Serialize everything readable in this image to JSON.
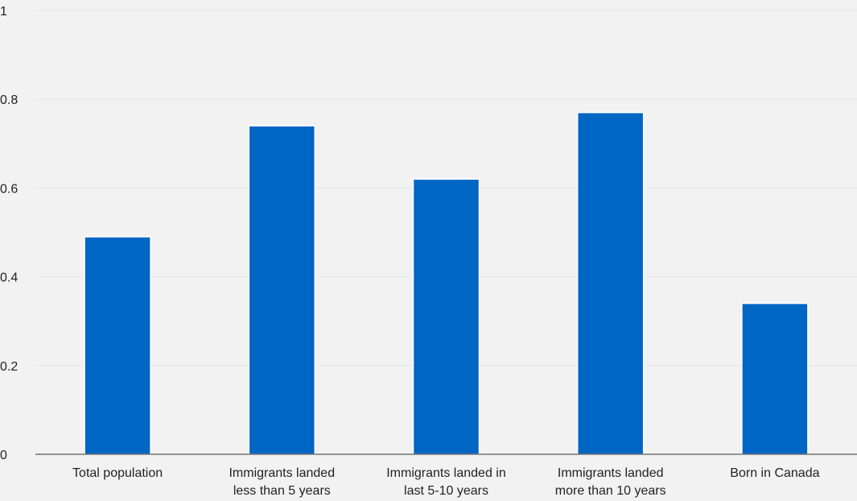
{
  "chart_data": {
    "type": "bar",
    "title": "",
    "xlabel": "",
    "ylabel": "",
    "ylim": [
      0,
      1
    ],
    "yticks": [
      0,
      0.2,
      0.4,
      0.6,
      0.8,
      1
    ],
    "ytick_labels": [
      "0",
      "0.2",
      "0.4",
      "0.6",
      "0.8",
      "1"
    ],
    "grid": true,
    "categories": [
      [
        "Total population"
      ],
      [
        "Immigrants landed",
        "less than 5 years"
      ],
      [
        "Immigrants landed in",
        "last 5-10 years"
      ],
      [
        "Immigrants landed",
        "more than 10 years"
      ],
      [
        "Born in Canada"
      ]
    ],
    "values": [
      0.49,
      0.74,
      0.62,
      0.77,
      0.34
    ],
    "colors": {
      "bar": "#0066c4",
      "grid": "#e4e4e4",
      "axis": "#333333",
      "background": "#f2f2f2"
    }
  }
}
